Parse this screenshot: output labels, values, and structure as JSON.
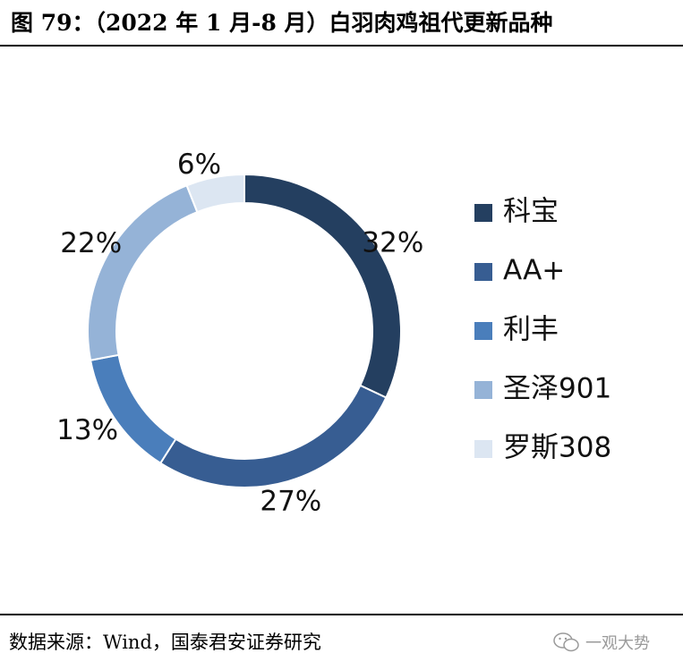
{
  "title": "图 79：（2022 年 1 月-8 月）白羽肉鸡祖代更新品种",
  "source": "数据来源：Wind，国泰君安证券研究",
  "watermark": {
    "text": "一观大势",
    "icon": "wechat-icon"
  },
  "chart_data": {
    "type": "pie",
    "variant": "donut",
    "title": "",
    "categories": [
      "科宝",
      "AA+",
      "利丰",
      "圣泽901",
      "罗斯308"
    ],
    "values": [
      32,
      27,
      13,
      22,
      6
    ],
    "labels": [
      "32%",
      "27%",
      "13%",
      "22%",
      "6%"
    ],
    "colors": [
      "#243f60",
      "#375d92",
      "#4a7ebb",
      "#95b3d7",
      "#dce6f2"
    ],
    "legend_placement": "right",
    "start": "top",
    "direction": "clockwise"
  }
}
